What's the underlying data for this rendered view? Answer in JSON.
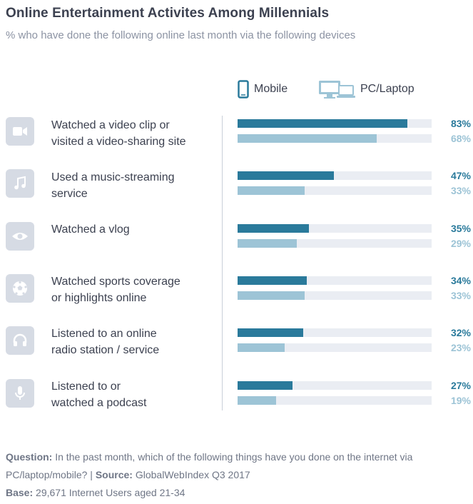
{
  "title": "Online Entertainment Activites Among Millennials",
  "subtitle": "% who have done the following online last month via the following devices",
  "legend": {
    "mobile": "Mobile",
    "pc": "PC/Laptop"
  },
  "colors": {
    "mobile": "#2a7a9b",
    "pc": "#9dc4d6",
    "track": "#eaedf3",
    "icon_bg": "#d6dbe4"
  },
  "chart_data": {
    "type": "bar",
    "orientation": "horizontal",
    "categories": [
      "Watched a video clip or visited a video-sharing site",
      "Used a music-streaming service",
      "Watched a vlog",
      "Watched sports coverage or highlights online",
      "Listened to an online radio station / service",
      "Listened to or watched a podcast"
    ],
    "series": [
      {
        "name": "Mobile",
        "values": [
          83,
          47,
          35,
          34,
          32,
          27
        ]
      },
      {
        "name": "PC/Laptop",
        "values": [
          68,
          33,
          29,
          33,
          23,
          19
        ]
      }
    ],
    "xlim": [
      0,
      95
    ]
  },
  "rows": [
    {
      "line1": "Watched a video clip or",
      "line2": "visited a video-sharing site",
      "icon": "video-camera-icon",
      "mobile_label": "83%",
      "pc_label": "68%"
    },
    {
      "line1": "Used a music-streaming",
      "line2": "service",
      "icon": "music-note-icon",
      "mobile_label": "47%",
      "pc_label": "33%"
    },
    {
      "line1": "Watched a vlog",
      "line2": "",
      "icon": "eye-icon",
      "mobile_label": "35%",
      "pc_label": "29%"
    },
    {
      "line1": "Watched sports coverage",
      "line2": "or highlights online",
      "icon": "soccer-ball-icon",
      "mobile_label": "34%",
      "pc_label": "33%"
    },
    {
      "line1": "Listened to an online",
      "line2": "radio station / service",
      "icon": "headphones-icon",
      "mobile_label": "32%",
      "pc_label": "23%"
    },
    {
      "line1": "Listened to or",
      "line2": "watched a podcast",
      "icon": "microphone-icon",
      "mobile_label": "27%",
      "pc_label": "19%"
    }
  ],
  "footer": {
    "question_label": "Question:",
    "question_text": "In the past month, which of the following things have you done on the internet via PC/laptop/mobile?  |",
    "source_label": "Source:",
    "source_text": "GlobalWebIndex Q3 2017",
    "base_label": "Base:",
    "base_text": "29,671 Internet Users aged 21-34"
  }
}
